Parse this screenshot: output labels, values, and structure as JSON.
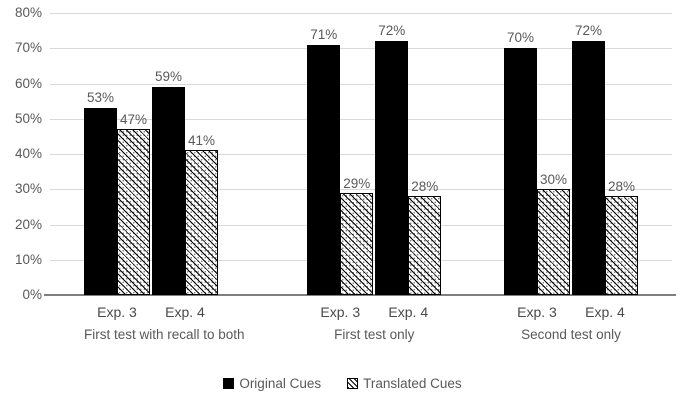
{
  "chart_data": {
    "type": "bar",
    "title": "",
    "xlabel": "",
    "ylabel": "",
    "ylim": [
      0,
      80
    ],
    "yticks": [
      "0%",
      "10%",
      "20%",
      "30%",
      "40%",
      "50%",
      "60%",
      "70%",
      "80%"
    ],
    "grid": true,
    "legend_position": "bottom",
    "value_suffix": "%",
    "series_names": [
      "Original Cues",
      "Translated Cues"
    ],
    "legend": [
      {
        "name": "Original Cues",
        "style": "solid-black"
      },
      {
        "name": "Translated Cues",
        "style": "diagonal-hatch"
      }
    ],
    "groups": [
      {
        "label": "First test with recall to both",
        "clusters": [
          {
            "label": "Exp. 3",
            "values": [
              53,
              47
            ]
          },
          {
            "label": "Exp. 4",
            "values": [
              59,
              41
            ]
          }
        ]
      },
      {
        "label": "First test only",
        "clusters": [
          {
            "label": "Exp. 3",
            "values": [
              71,
              29
            ]
          },
          {
            "label": "Exp. 4",
            "values": [
              72,
              28
            ]
          }
        ]
      },
      {
        "label": "Second test only",
        "clusters": [
          {
            "label": "Exp. 3",
            "values": [
              70,
              30
            ]
          },
          {
            "label": "Exp. 4",
            "values": [
              72,
              28
            ]
          }
        ]
      }
    ]
  },
  "colors": {
    "bar_fill": "#000000",
    "hatch_color": "#000000",
    "text": "#595959",
    "gridline": "#d9d9d9",
    "axis_line": "#7f7f7f",
    "background": "#ffffff"
  }
}
